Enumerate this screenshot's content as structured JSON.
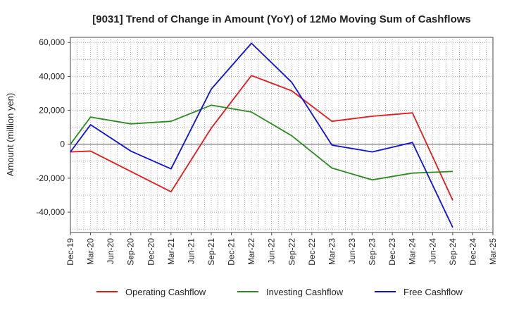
{
  "chart_data": {
    "type": "line",
    "title": "[9031]  Trend of Change in Amount (YoY) of 12Mo Moving Sum of Cashflows",
    "xlabel": "",
    "ylabel": "Amount (million yen)",
    "ylim": [
      -52000,
      63000
    ],
    "yticks": [
      60000,
      40000,
      20000,
      0,
      -20000,
      -40000
    ],
    "ytick_labels": [
      "60,000",
      "40,000",
      "20,000",
      "0",
      "-20,000",
      "-40,000"
    ],
    "categories": [
      "Dec-19",
      "Mar-20",
      "Jun-20",
      "Sep-20",
      "Dec-20",
      "Mar-21",
      "Jun-21",
      "Sep-21",
      "Dec-21",
      "Mar-22",
      "Jun-22",
      "Sep-22",
      "Dec-22",
      "Mar-23",
      "Jun-23",
      "Sep-23",
      "Dec-23",
      "Mar-24",
      "Jun-24",
      "Sep-24",
      "Dec-24",
      "Mar-25"
    ],
    "legend_position": "bottom",
    "series": [
      {
        "name": "Operating Cashflow",
        "color": "#e31a1c",
        "values": [
          -4500,
          -4000,
          null,
          -16000,
          null,
          -28000,
          null,
          9500,
          null,
          40500,
          null,
          31500,
          null,
          13500,
          null,
          16500,
          null,
          18500,
          null,
          -33000,
          null,
          null
        ]
      },
      {
        "name": "Investing Cashflow",
        "color": "#2e8b22",
        "values": [
          0,
          16000,
          null,
          12000,
          null,
          13500,
          null,
          23000,
          null,
          19000,
          null,
          5000,
          null,
          -14000,
          null,
          -21000,
          null,
          -17000,
          null,
          -16000,
          null,
          null
        ]
      },
      {
        "name": "Free Cashflow",
        "color": "#1010dd",
        "values": [
          -4500,
          11500,
          null,
          -4000,
          null,
          -14500,
          null,
          32500,
          null,
          59500,
          null,
          36500,
          null,
          -500,
          null,
          -4500,
          null,
          1000,
          null,
          -49000,
          null,
          null
        ]
      }
    ]
  }
}
